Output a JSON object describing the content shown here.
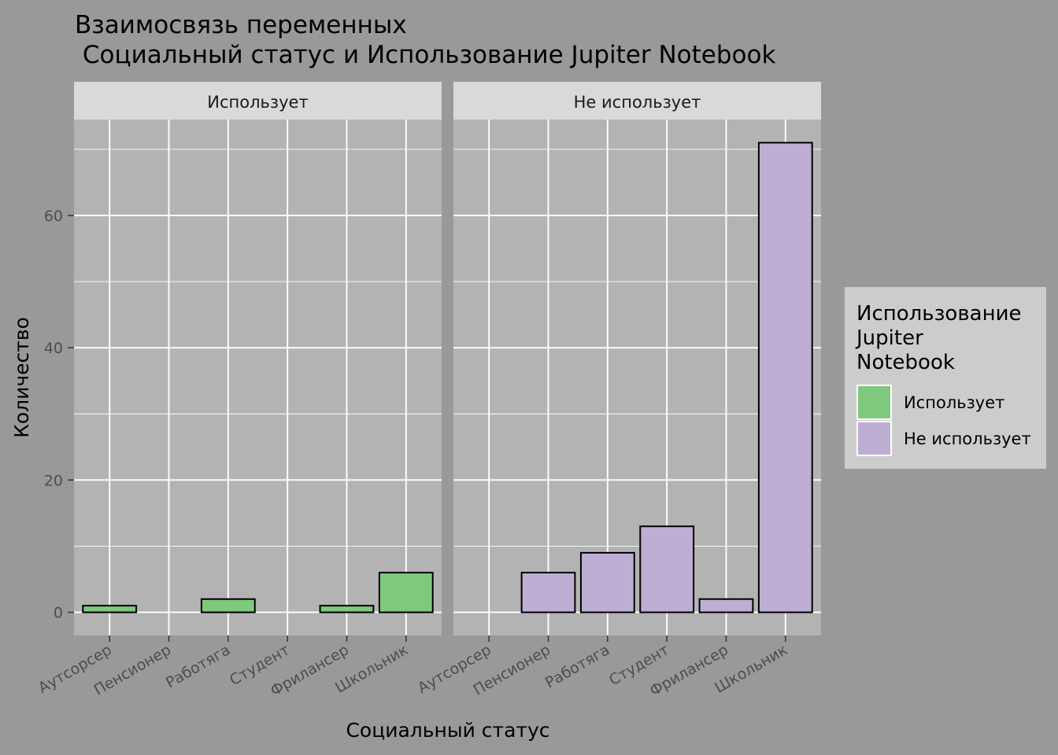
{
  "chart_data": {
    "type": "bar",
    "title_lines": [
      "Взаимосвязь переменных",
      " Социальный статус и Использование Jupiter Notebook"
    ],
    "xlabel": "Социальный статус",
    "ylabel": "Количество",
    "ylim": [
      -3.5,
      74.5
    ],
    "yticks": [
      0,
      20,
      40,
      60
    ],
    "grid": true,
    "categories": [
      "Аутсорсер",
      "Пенсионер",
      "Работяга",
      "Студент",
      "Фрилансер",
      "Школьник"
    ],
    "facets": [
      {
        "label": "Использует",
        "series": "Использует",
        "values": [
          1,
          0,
          2,
          0,
          1,
          6
        ]
      },
      {
        "label": "Не использует",
        "series": "Не использует",
        "values": [
          0,
          6,
          9,
          13,
          2,
          71
        ]
      }
    ],
    "series": [
      {
        "name": "Использует",
        "color": "#7fc97f"
      },
      {
        "name": "Не использует",
        "color": "#beaed4"
      }
    ],
    "legend": {
      "title_lines": [
        "Использование",
        "Jupiter",
        "Notebook"
      ],
      "placement": "right"
    },
    "colors": {
      "background": "#999999",
      "panel": "#b3b3b3",
      "strip": "#d9d9d9",
      "legend_box": "#cccccc",
      "grid": "#ffffff",
      "bar_outline": "#000000"
    }
  }
}
